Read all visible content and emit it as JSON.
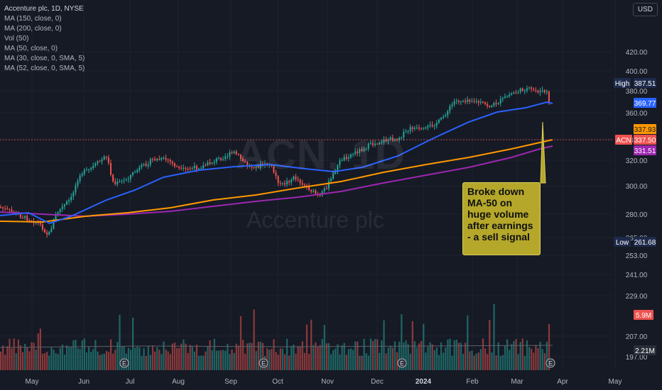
{
  "header": {
    "symbol_line": "Accenture plc, 1D, NYSE",
    "indicators": [
      "MA (150, close, 0)",
      "MA (200, close, 0)",
      "Vol (50)",
      "MA (50, close, 0)",
      "MA (30, close, 0, SMA, 5)",
      "MA (52, close, 0, SMA, 5)"
    ]
  },
  "currency_button": "USD",
  "watermark": {
    "ticker": "ACN, 1D",
    "name": "Accenture plc"
  },
  "annotation": {
    "text": "Broke down MA-50 on huge volume after earnings - a sell signal"
  },
  "price_axis": {
    "ticks": [
      "420.00",
      "400.00",
      "380.00",
      "360.00",
      "340.00",
      "320.00",
      "300.00",
      "280.00",
      "265.00",
      "253.00",
      "241.00",
      "229.00",
      "207.00",
      "197.00"
    ]
  },
  "price_labels": {
    "high_label": "High",
    "high_value": "387.51",
    "ma50_value": "369.77",
    "ma150_value": "337.93",
    "ticker_label": "ACN",
    "last_value": "337.50",
    "ma200_value": "331.51",
    "low_label": "Low",
    "low_value": "261.68",
    "volume_value": "5.9M",
    "volume_avg_value": "2.21M"
  },
  "time_axis": {
    "labels": [
      "May",
      "Jun",
      "Jul",
      "Aug",
      "Sep",
      "Oct",
      "Nov",
      "Dec",
      "2024",
      "Feb",
      "Mar",
      "Apr",
      "May"
    ]
  },
  "colors": {
    "background": "#161a25",
    "up": "#26a69a",
    "down": "#ef5350",
    "ma50": "#2962ff",
    "ma150": "#ff9800",
    "ma200": "#9c27b0",
    "annotation": "#b5a72a"
  },
  "earnings_marker": "E",
  "chart_data": {
    "type": "line",
    "title": "Accenture plc, 1D, NYSE",
    "x": [
      "May",
      "Jun",
      "Jul",
      "Aug",
      "Sep",
      "Oct",
      "Nov",
      "Dec",
      "2024",
      "Feb",
      "Mar",
      "Apr"
    ],
    "series": [
      {
        "name": "MA (50, close, 0)",
        "values": [
          283,
          278,
          298,
          315,
          318,
          318,
          312,
          320,
          335,
          355,
          369.77,
          null
        ]
      },
      {
        "name": "MA (150, close, 0)",
        "values": [
          276,
          276,
          282,
          290,
          296,
          300,
          304,
          312,
          320,
          328,
          337.93,
          null
        ]
      },
      {
        "name": "MA (200, close, 0)",
        "values": [
          282,
          280,
          283,
          286,
          290,
          293,
          296,
          303,
          312,
          321,
          331.51,
          null
        ]
      }
    ],
    "price_high": 387.51,
    "price_low": 261.68,
    "last_price": 337.5,
    "last_volume": "5.9M",
    "volume_average": "2.21M",
    "ylim": [
      261.68,
      420.0
    ]
  }
}
